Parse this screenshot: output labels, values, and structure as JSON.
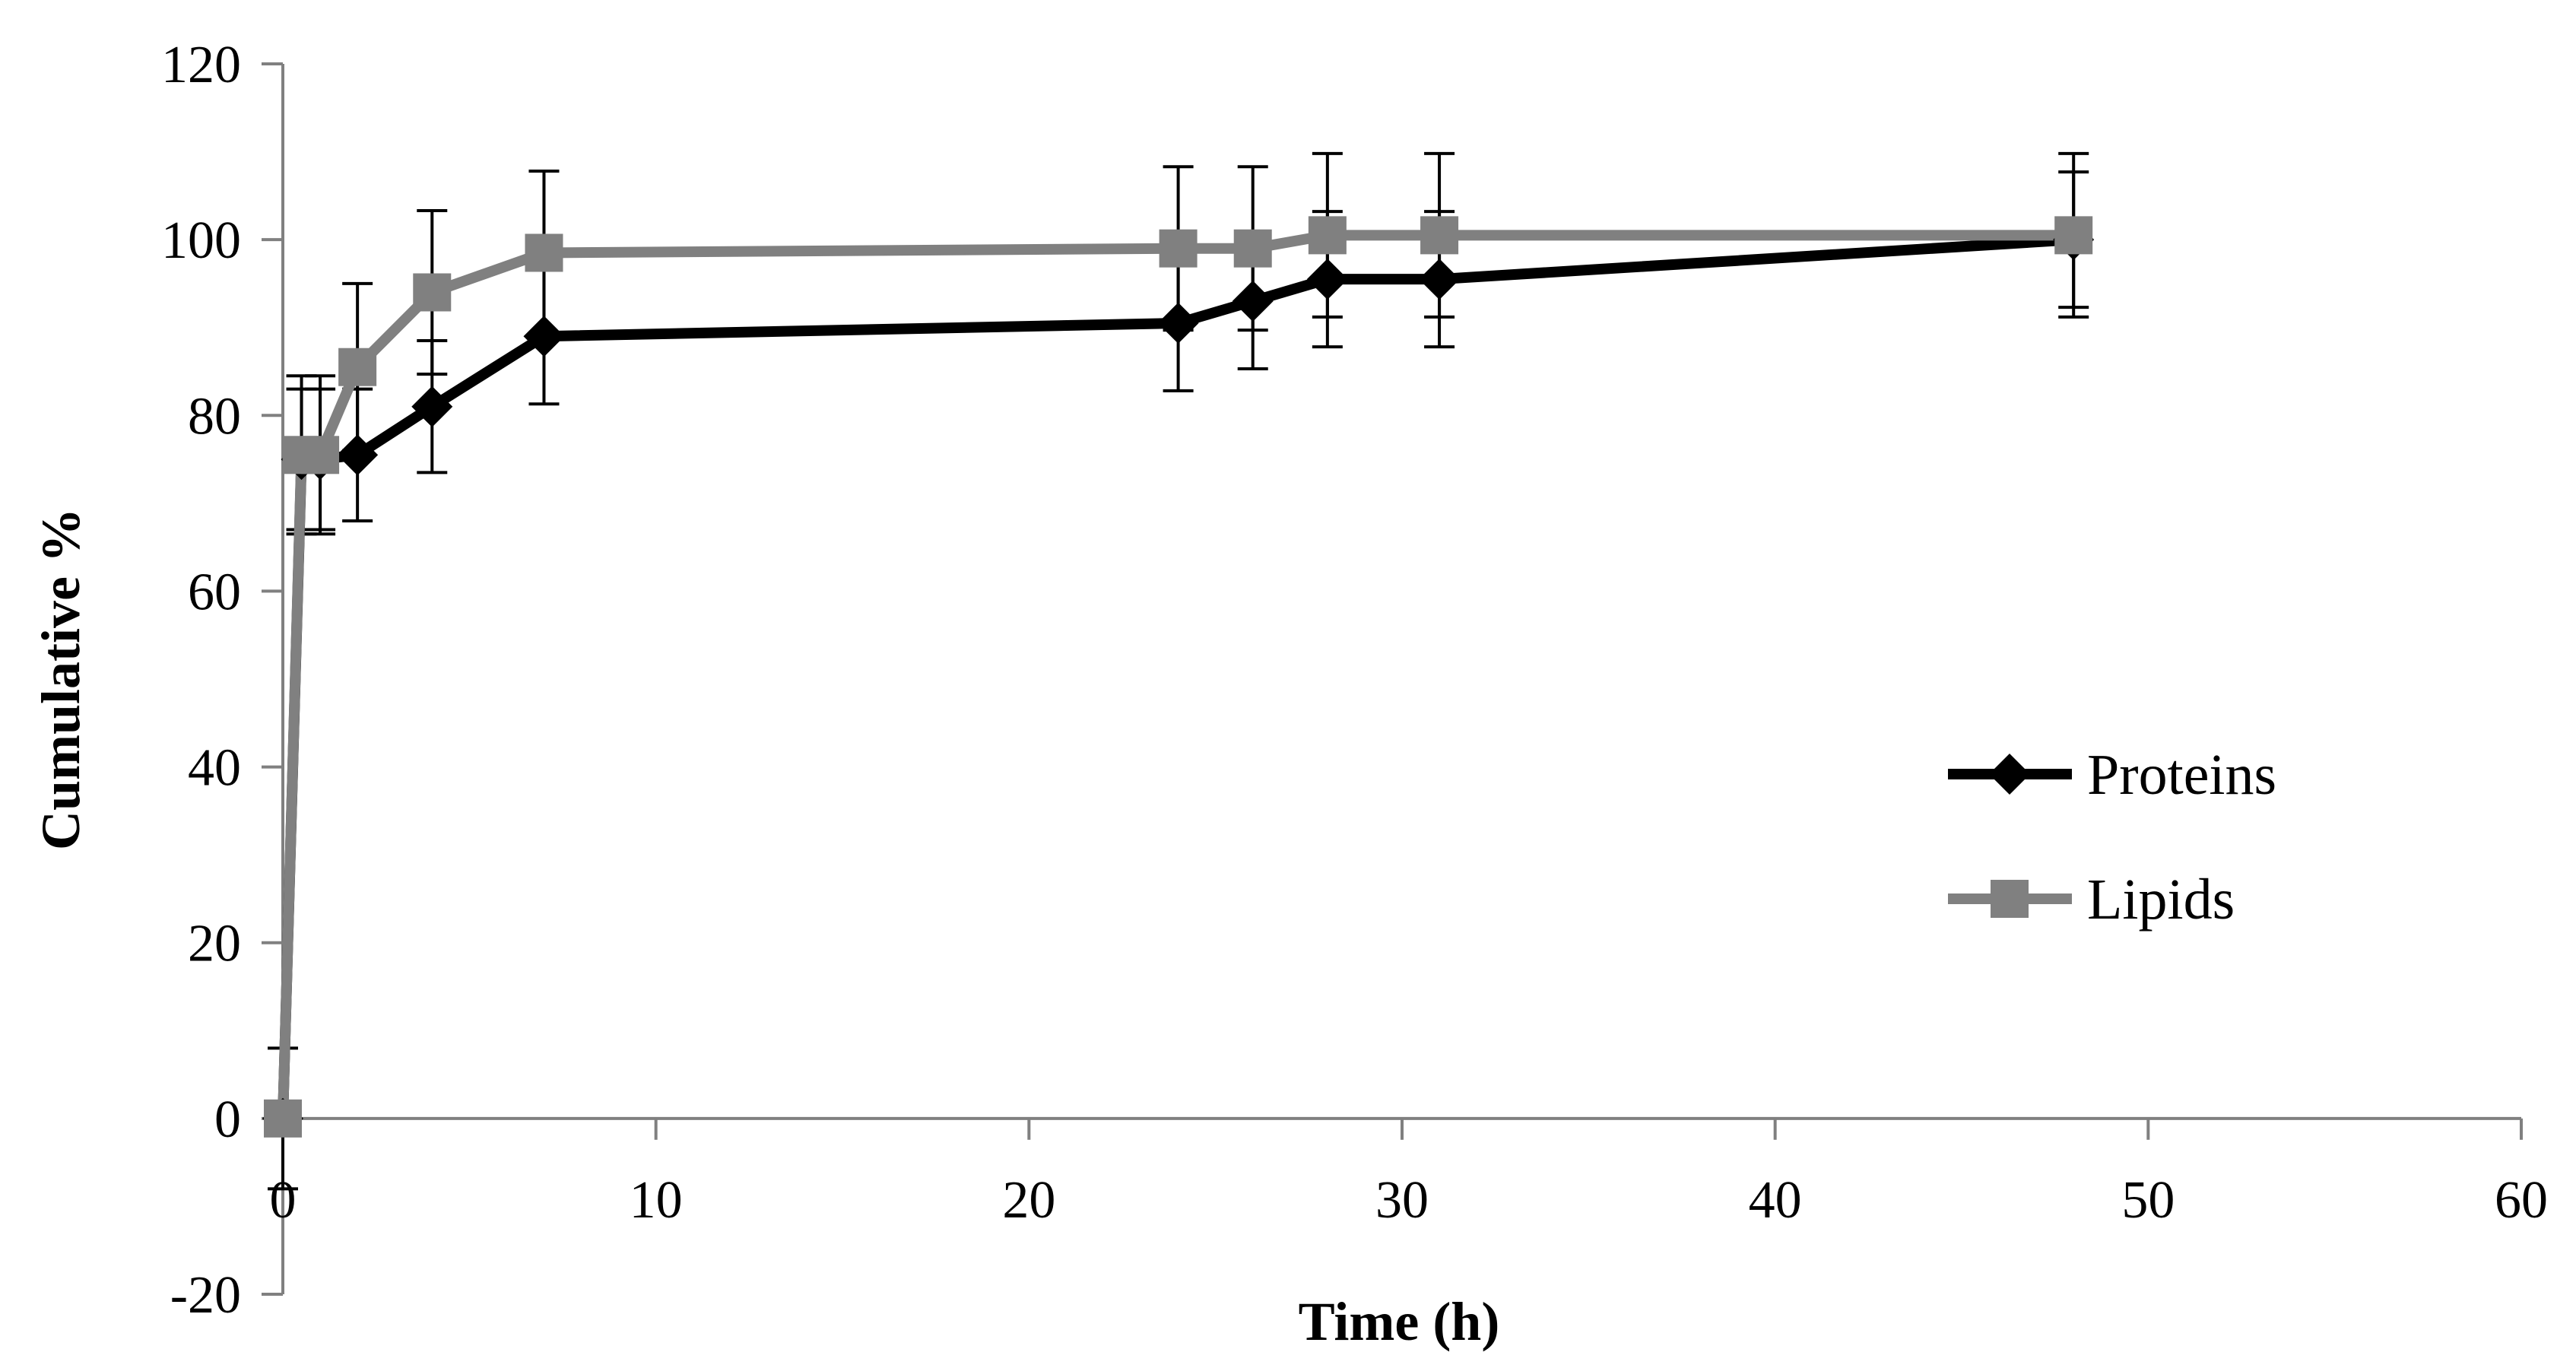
{
  "chart_data": {
    "type": "line",
    "title": "",
    "xlabel": "Time (h)",
    "ylabel": "Cumulative %",
    "xlim": [
      0,
      60
    ],
    "ylim": [
      -20,
      120
    ],
    "x_ticks": [
      0,
      10,
      20,
      30,
      40,
      50,
      60
    ],
    "y_ticks": [
      -20,
      0,
      20,
      40,
      60,
      80,
      100,
      120
    ],
    "grid": false,
    "legend_position": "right",
    "series": [
      {
        "name": "Proteins",
        "color": "#000000",
        "marker": "diamond",
        "x": [
          0,
          0.5,
          1,
          2,
          4,
          7,
          24,
          26,
          28,
          31,
          48
        ],
        "y": [
          0,
          75,
          75,
          75.5,
          81,
          89,
          90.5,
          93,
          95.5,
          95.5,
          100
        ],
        "error": [
          8,
          8,
          8,
          7.5,
          7.5,
          7.7,
          7.7,
          7.7,
          7.7,
          7.7,
          7.7
        ]
      },
      {
        "name": "Lipids",
        "color": "#808080",
        "marker": "square",
        "x": [
          0,
          0.5,
          1,
          2,
          4,
          7,
          24,
          26,
          28,
          31,
          48
        ],
        "y": [
          0,
          75.5,
          75.5,
          85.5,
          94,
          98.5,
          99,
          99,
          100.5,
          100.5,
          100.5
        ],
        "error": [
          0,
          9,
          9,
          9.5,
          9.3,
          9.3,
          9.3,
          9.3,
          9.3,
          9.3,
          9.3
        ]
      }
    ]
  }
}
